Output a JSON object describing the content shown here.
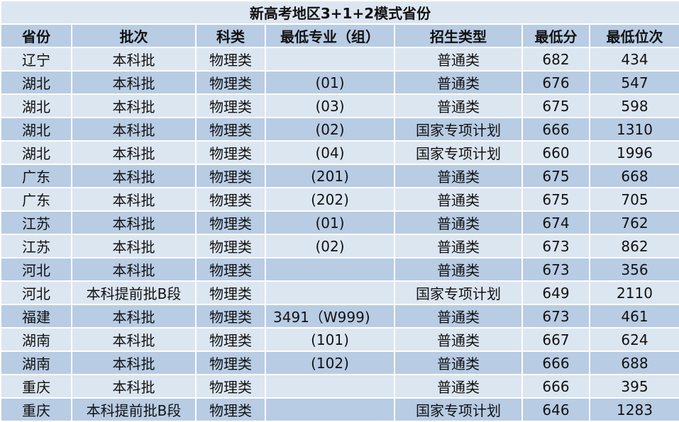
{
  "title": "新高考地区3+1+2模式省份",
  "headers": [
    "省份",
    "批次",
    "科类",
    "最低专业（组）",
    "招生类型",
    "最低分",
    "最低位次"
  ],
  "colors": {
    "row_light": "#dce6f1",
    "row_dark": "#b8cce4",
    "border": "#ffffff"
  },
  "rows": [
    [
      "辽宁",
      "本科批",
      "物理类",
      "",
      "普通类",
      "682",
      "434"
    ],
    [
      "湖北",
      "本科批",
      "物理类",
      "(01)",
      "普通类",
      "676",
      "547"
    ],
    [
      "湖北",
      "本科批",
      "物理类",
      "(03)",
      "普通类",
      "675",
      "598"
    ],
    [
      "湖北",
      "本科批",
      "物理类",
      "(02)",
      "国家专项计划",
      "666",
      "1310"
    ],
    [
      "湖北",
      "本科批",
      "物理类",
      "(04)",
      "国家专项计划",
      "660",
      "1996"
    ],
    [
      "广东",
      "本科批",
      "物理类",
      "(201)",
      "普通类",
      "675",
      "668"
    ],
    [
      "广东",
      "本科批",
      "物理类",
      "(202)",
      "普通类",
      "675",
      "705"
    ],
    [
      "江苏",
      "本科批",
      "物理类",
      "(01)",
      "普通类",
      "674",
      "762"
    ],
    [
      "江苏",
      "本科批",
      "物理类",
      "(02)",
      "普通类",
      "673",
      "862"
    ],
    [
      "河北",
      "本科批",
      "物理类",
      "",
      "普通类",
      "673",
      "356"
    ],
    [
      "河北",
      "本科提前批B段",
      "物理类",
      "",
      "国家专项计划",
      "649",
      "2110"
    ],
    [
      "福建",
      "本科批",
      "物理类",
      "3491（W999)",
      "普通类",
      "673",
      "461"
    ],
    [
      "湖南",
      "本科批",
      "物理类",
      "(101)",
      "普通类",
      "667",
      "624"
    ],
    [
      "湖南",
      "本科批",
      "物理类",
      "(102)",
      "普通类",
      "666",
      "688"
    ],
    [
      "重庆",
      "本科批",
      "物理类",
      "",
      "普通类",
      "666",
      "395"
    ],
    [
      "重庆",
      "本科提前批B段",
      "物理类",
      "",
      "国家专项计划",
      "646",
      "1283"
    ]
  ]
}
